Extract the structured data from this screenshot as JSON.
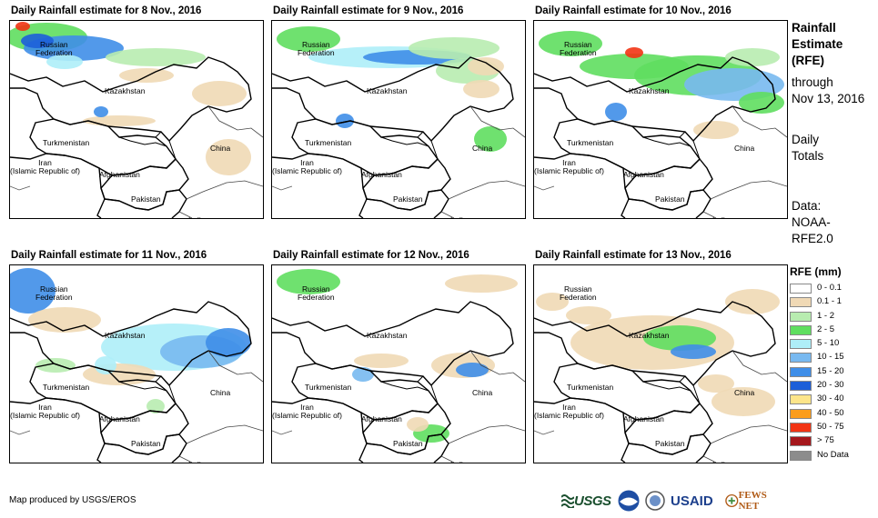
{
  "panels": [
    {
      "title": "Daily Rainfall estimate for 8 Nov., 2016"
    },
    {
      "title": "Daily Rainfall estimate for 9 Nov., 2016"
    },
    {
      "title": "Daily Rainfall estimate for 10 Nov., 2016"
    },
    {
      "title": "Daily Rainfall estimate for 11 Nov., 2016"
    },
    {
      "title": "Daily Rainfall estimate for 12 Nov., 2016"
    },
    {
      "title": "Daily Rainfall estimate for 13 Nov., 2016"
    }
  ],
  "map_labels": {
    "russia": "Russian\nFederation",
    "kazakhstan": "Kazakhstan",
    "turkmenistan": "Turkmenistan",
    "iran": "Iran\n(Islamic Republic of)",
    "afghanistan": "Afghanistan",
    "pakistan": "Pakistan",
    "china": "China",
    "india": "India"
  },
  "sidebar": {
    "heading": "Rainfall\nEstimate\n(RFE)",
    "period": "through\nNov 13, 2016",
    "totals": "Daily\nTotals",
    "source": "Data:\nNOAA-\nRFE2.0"
  },
  "legend": {
    "title": "RFE (mm)",
    "items": [
      {
        "label": "0 - 0.1",
        "color": "#ffffff"
      },
      {
        "label": "0.1 - 1",
        "color": "#f0d9b5"
      },
      {
        "label": "1 - 2",
        "color": "#b8ecb0"
      },
      {
        "label": "2 - 5",
        "color": "#5fde5f"
      },
      {
        "label": "5 - 10",
        "color": "#aeeef8"
      },
      {
        "label": "10 - 15",
        "color": "#78b9f0"
      },
      {
        "label": "15 - 20",
        "color": "#3f8ee8"
      },
      {
        "label": "20 - 30",
        "color": "#1d5fd9"
      },
      {
        "label": "30 - 40",
        "color": "#fde58a"
      },
      {
        "label": "40 - 50",
        "color": "#fb9d1c"
      },
      {
        "label": "50 - 75",
        "color": "#f23414"
      },
      {
        "label": "> 75",
        "color": "#a5171c"
      },
      {
        "label": "No Data",
        "color": "#8c8c8c"
      }
    ]
  },
  "credit": "Map produced by USGS/EROS",
  "logos": {
    "usgs": "USGS",
    "usaid": "USAID",
    "fews": "FEWS NET"
  }
}
